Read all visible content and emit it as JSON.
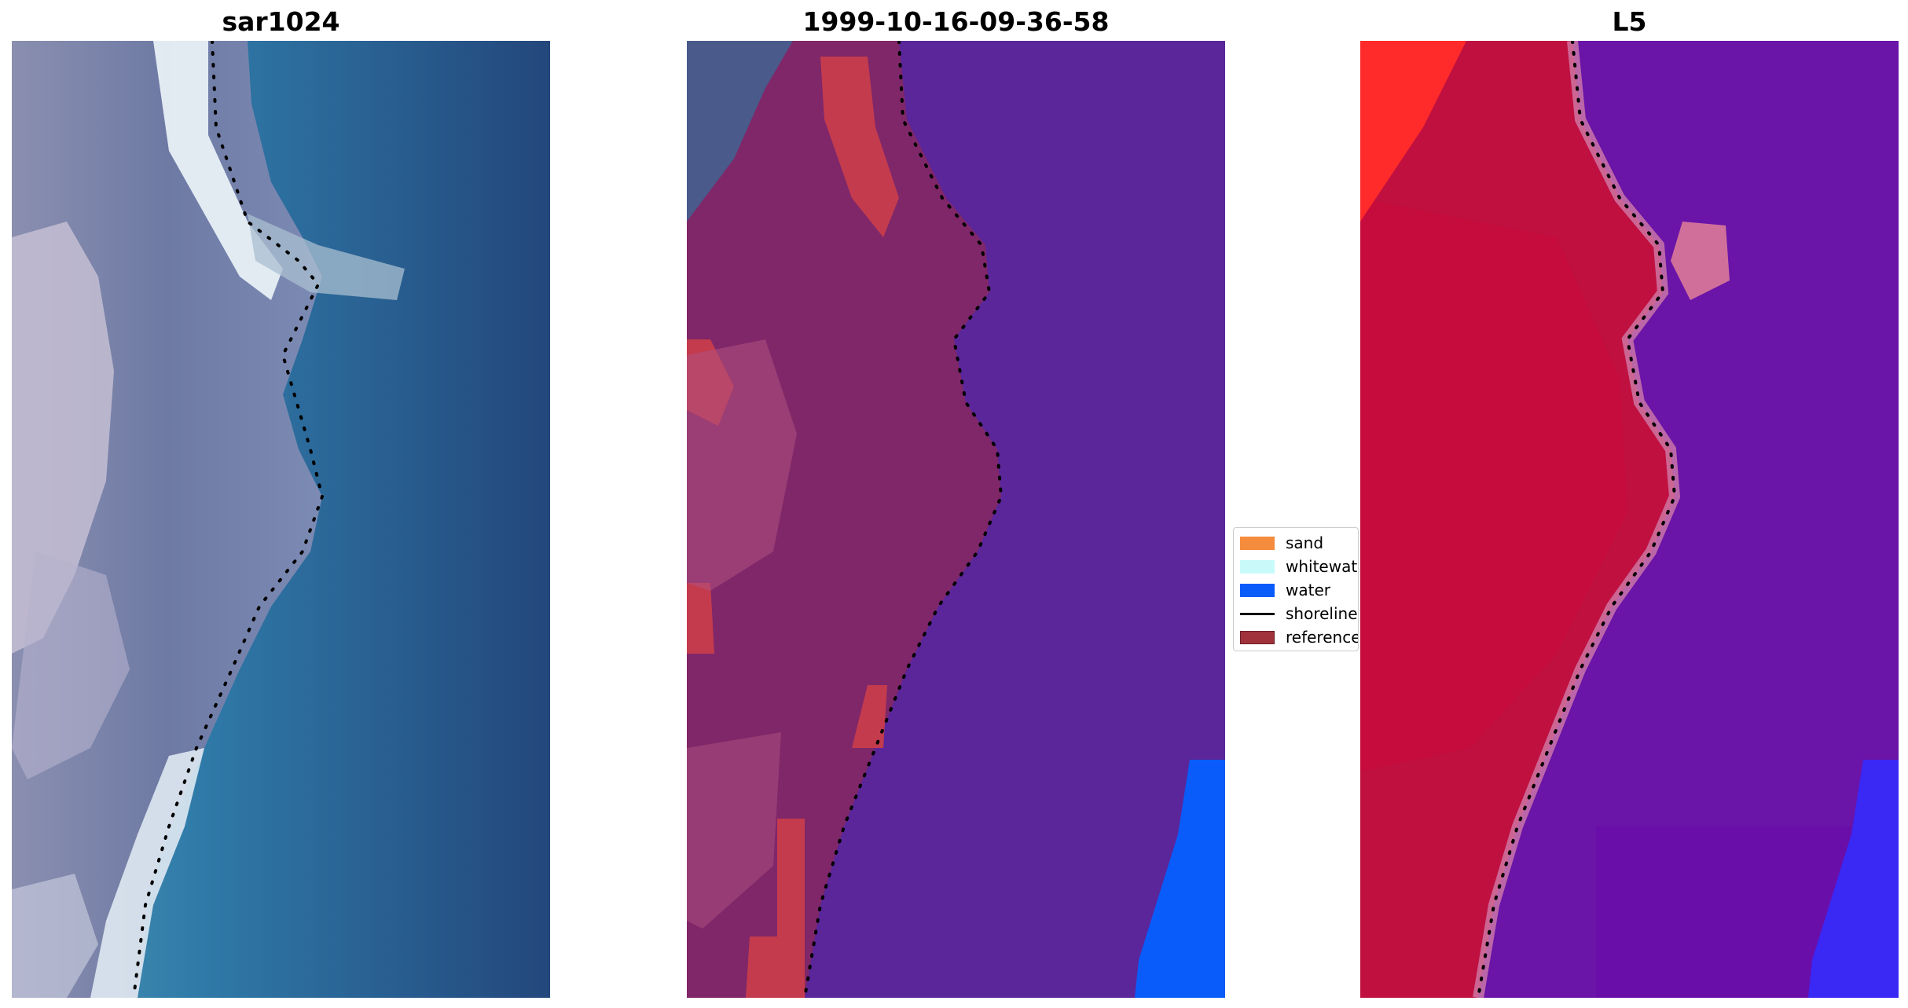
{
  "panels": [
    {
      "title": "sar1024"
    },
    {
      "title": "1999-10-16-09-36-58"
    },
    {
      "title": "L5"
    }
  ],
  "legend": {
    "items": [
      {
        "label": "sand",
        "color": "#f58b3c",
        "kind": "patch"
      },
      {
        "label": "whitewater",
        "color": "#c8fafa",
        "kind": "patch"
      },
      {
        "label": "water",
        "color": "#0a5cfa",
        "kind": "patch"
      },
      {
        "label": "shoreline",
        "color": "#000000",
        "kind": "line"
      },
      {
        "label": "reference",
        "color": "#a0323c",
        "kind": "patch"
      }
    ]
  },
  "colors": {
    "rgb_water": "#2a6096",
    "rgb_surf": "#e8f0f5",
    "class_water": "#5a269a",
    "class_land": "#7f2769",
    "class_reference": "#c43b4e",
    "class_deep_water": "#0a5cfa",
    "ndwi_land": "#c01040",
    "ndwi_water": "#6a14a8",
    "ndwi_deep_water": "#3a28f5",
    "ndwi_bright": "#ff2a2a"
  }
}
